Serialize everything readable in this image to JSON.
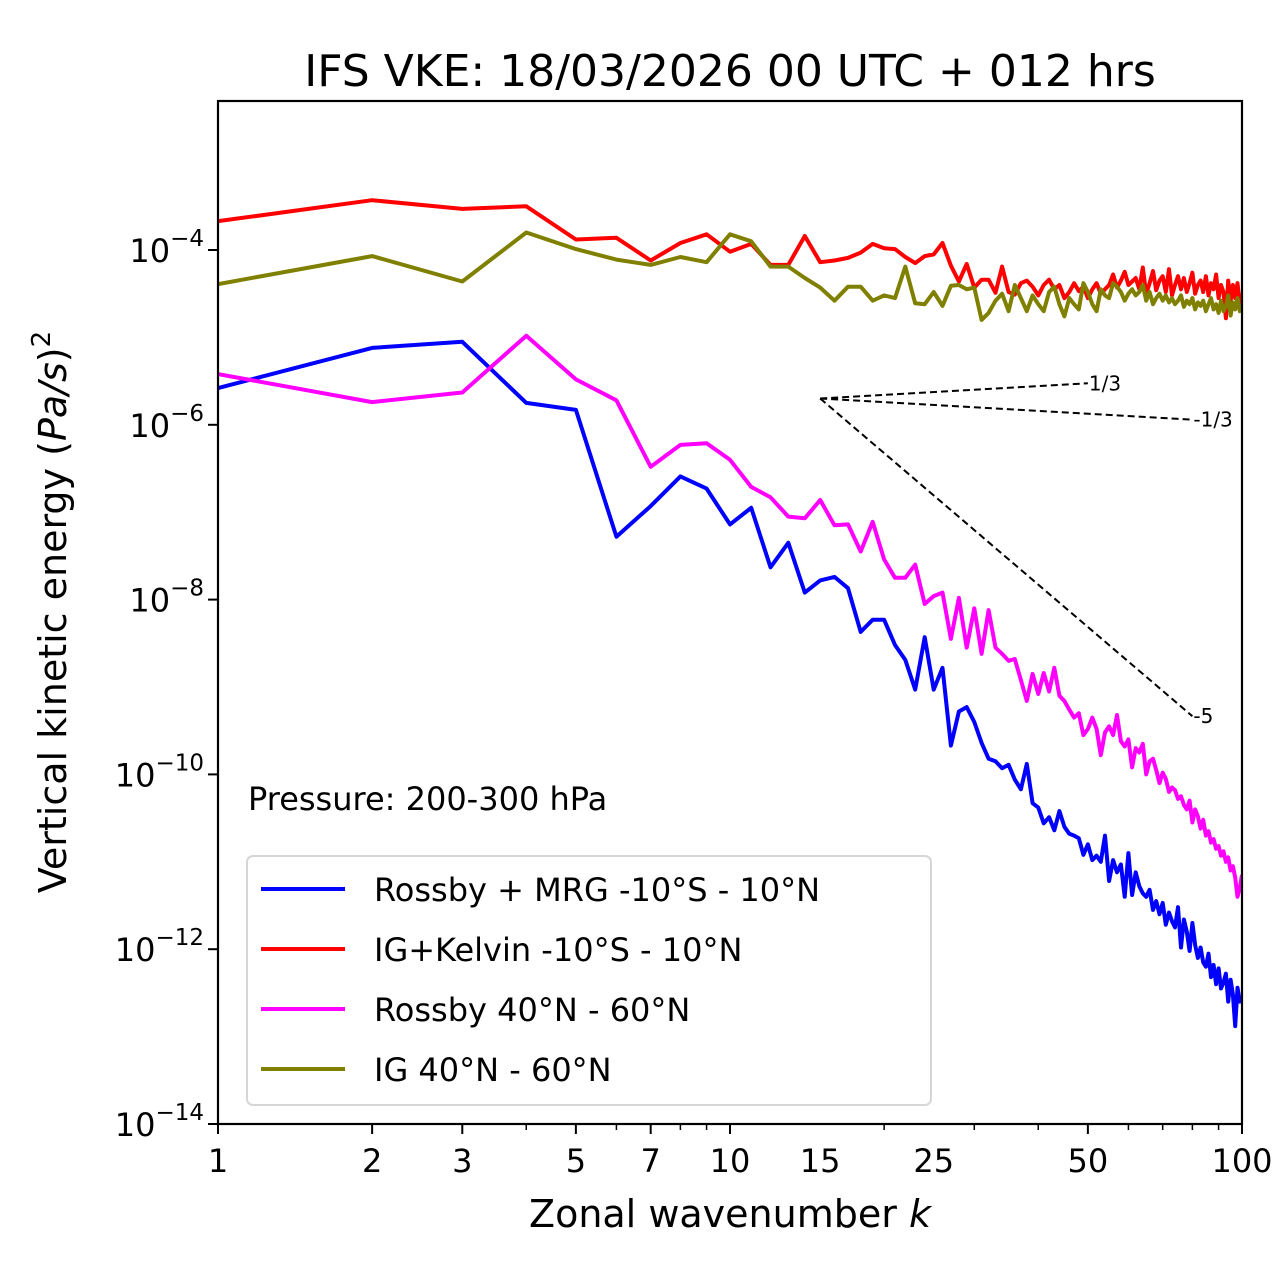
{
  "chart_data": {
    "type": "line",
    "title": "IFS VKE: 18/03/2026 00 UTC + 012 hrs",
    "xlabel": "Zonal wavenumber k",
    "xlabel_main": "Zonal wavenumber ",
    "xlabel_var": "k",
    "ylabel": "Vertical kinetic energy (Pa/s)^2",
    "ylabel_main": "Vertical kinetic energy (",
    "ylabel_unit": "Pa/s",
    "ylabel_close": ")",
    "ylabel_exp": "2",
    "xscale": "log",
    "yscale": "log",
    "xlim": [
      1,
      100
    ],
    "ylim": [
      1e-14,
      0.005
    ],
    "grid": false,
    "legend_position": "lower-left",
    "x_ticks": [
      1,
      2,
      3,
      5,
      7,
      10,
      15,
      25,
      50,
      100
    ],
    "x_tick_labels": [
      "1",
      "2",
      "3",
      "5",
      "7",
      "10",
      "15",
      "25",
      "50",
      "100"
    ],
    "y_ticks": [
      1e-14,
      1e-12,
      1e-10,
      1e-08,
      1e-06,
      0.0001
    ],
    "y_tick_labels": [
      {
        "base": "10",
        "exp": "−14"
      },
      {
        "base": "10",
        "exp": "−12"
      },
      {
        "base": "10",
        "exp": "−10"
      },
      {
        "base": "10",
        "exp": "−8"
      },
      {
        "base": "10",
        "exp": "−6"
      },
      {
        "base": "10",
        "exp": "−4"
      }
    ],
    "annotation": "Pressure: 200-300 hPa",
    "reference_slopes": [
      {
        "label": "1/3",
        "slope": 0.3333,
        "k_start": 15,
        "k_end": 50,
        "e_start": 2e-06
      },
      {
        "label": "-1/3",
        "slope": -0.3333,
        "k_start": 15,
        "k_end": 80,
        "e_start": 2e-06
      },
      {
        "label": "-5",
        "slope": -5,
        "k_start": 15,
        "k_end": 80,
        "e_start": 2e-06
      }
    ],
    "series": [
      {
        "name": "Rossby + MRG -10°S - 10°N",
        "color": "#0000ff",
        "log10_values": [
          -5.58,
          -5.12,
          -5.05,
          -5.75,
          -5.83,
          -7.28,
          -6.93,
          -6.59,
          -6.73,
          -7.14,
          -6.95,
          -7.63,
          -7.35,
          -7.92,
          -7.78,
          -7.74,
          -7.87,
          -8.37,
          -8.23,
          -8.23,
          -8.52,
          -8.69,
          -9.03,
          -8.43,
          -9.03,
          -8.78,
          -9.67,
          -9.28,
          -9.23,
          -9.4,
          -9.64,
          -9.82,
          -9.85,
          -9.93,
          -9.89,
          -10.06,
          -10.17,
          -9.88,
          -10.33,
          -10.38,
          -10.56,
          -10.49,
          -10.64,
          -10.42,
          -10.6,
          -10.68,
          -10.7,
          -10.73,
          -10.92,
          -10.8,
          -10.98,
          -10.93,
          -11.0,
          -10.7,
          -11.22,
          -10.98,
          -11.12,
          -11.03,
          -11.4,
          -10.9,
          -11.38,
          -11.12,
          -11.28,
          -11.36,
          -11.4,
          -11.32,
          -11.55,
          -11.45,
          -11.6,
          -11.47,
          -11.72,
          -11.58,
          -11.68,
          -11.75,
          -11.52,
          -11.98,
          -11.66,
          -11.8,
          -12.02,
          -11.7,
          -11.95,
          -12.1,
          -11.98,
          -12.15,
          -12.2,
          -12.05,
          -12.32,
          -12.18,
          -12.4,
          -12.22,
          -12.45,
          -12.38,
          -12.28,
          -12.6,
          -12.35,
          -12.52,
          -12.88,
          -12.44,
          -12.6,
          -12.58
        ],
        "k_start": 1
      },
      {
        "name": "IG+Kelvin -10°S - 10°N",
        "color": "#ff0000",
        "log10_values": [
          -3.67,
          -3.43,
          -3.53,
          -3.5,
          -3.88,
          -3.86,
          -4.12,
          -3.92,
          -3.82,
          -4.02,
          -3.93,
          -4.17,
          -4.17,
          -3.84,
          -4.14,
          -4.12,
          -4.09,
          -4.03,
          -3.93,
          -3.98,
          -3.99,
          -4.08,
          -4.15,
          -4.07,
          -4.05,
          -3.92,
          -4.18,
          -4.36,
          -4.16,
          -4.43,
          -4.34,
          -4.34,
          -4.49,
          -4.19,
          -4.48,
          -4.51,
          -4.38,
          -4.35,
          -4.42,
          -4.52,
          -4.4,
          -4.34,
          -4.45,
          -4.4,
          -4.55,
          -4.48,
          -4.38,
          -4.47,
          -4.42,
          -4.55,
          -4.45,
          -4.38,
          -4.5,
          -4.45,
          -4.4,
          -4.28,
          -4.43,
          -4.35,
          -4.25,
          -4.4,
          -4.36,
          -4.32,
          -4.45,
          -4.2,
          -4.5,
          -4.38,
          -4.24,
          -4.46,
          -4.35,
          -4.3,
          -4.48,
          -4.22,
          -4.52,
          -4.4,
          -4.3,
          -4.45,
          -4.32,
          -4.48,
          -4.38,
          -4.26,
          -4.5,
          -4.4,
          -4.35,
          -4.48,
          -4.3,
          -4.52,
          -4.38,
          -4.45,
          -4.28,
          -4.55,
          -4.4,
          -4.48,
          -4.78,
          -4.35,
          -4.58,
          -4.4,
          -4.55,
          -4.38,
          -4.62,
          -4.5
        ],
        "k_start": 1
      },
      {
        "name": "Rossby 40°N - 60°N",
        "color": "#ff00ff",
        "log10_values": [
          -5.42,
          -5.74,
          -5.63,
          -4.98,
          -5.48,
          -5.72,
          -6.48,
          -6.23,
          -6.21,
          -6.4,
          -6.71,
          -6.83,
          -7.05,
          -7.07,
          -6.86,
          -7.15,
          -7.14,
          -7.45,
          -7.11,
          -7.54,
          -7.75,
          -7.75,
          -7.6,
          -8.05,
          -7.96,
          -7.92,
          -8.45,
          -7.98,
          -8.55,
          -8.1,
          -8.62,
          -8.12,
          -8.55,
          -8.62,
          -8.7,
          -8.68,
          -8.92,
          -9.16,
          -8.85,
          -9.08,
          -8.84,
          -9.05,
          -8.78,
          -9.1,
          -9.16,
          -9.26,
          -9.35,
          -9.3,
          -9.55,
          -9.48,
          -9.35,
          -9.48,
          -9.78,
          -9.52,
          -9.45,
          -9.55,
          -9.32,
          -9.62,
          -9.68,
          -9.6,
          -9.92,
          -9.7,
          -9.75,
          -9.65,
          -10.0,
          -9.85,
          -9.82,
          -9.95,
          -10.1,
          -9.98,
          -10.05,
          -10.2,
          -10.15,
          -10.18,
          -10.28,
          -10.25,
          -10.35,
          -10.4,
          -10.3,
          -10.55,
          -10.4,
          -10.48,
          -10.62,
          -10.52,
          -10.7,
          -10.65,
          -10.78,
          -10.74,
          -10.85,
          -10.82,
          -10.93,
          -10.88,
          -11.0,
          -10.95,
          -11.1,
          -11.05,
          -11.18,
          -11.4,
          -11.3,
          -11.15
        ],
        "k_start": 1
      },
      {
        "name": "IG 40°N - 60°N",
        "color": "#808000",
        "log10_values": [
          -4.39,
          -4.07,
          -4.36,
          -3.8,
          -3.99,
          -4.11,
          -4.17,
          -4.08,
          -4.14,
          -3.82,
          -3.9,
          -4.19,
          -4.19,
          -4.32,
          -4.43,
          -4.58,
          -4.42,
          -4.42,
          -4.58,
          -4.52,
          -4.55,
          -4.19,
          -4.61,
          -4.62,
          -4.48,
          -4.64,
          -4.41,
          -4.4,
          -4.45,
          -4.43,
          -4.8,
          -4.72,
          -4.58,
          -4.5,
          -4.7,
          -4.4,
          -4.55,
          -4.7,
          -4.52,
          -4.62,
          -4.7,
          -4.48,
          -4.42,
          -4.62,
          -4.76,
          -4.55,
          -4.62,
          -4.68,
          -4.38,
          -4.48,
          -4.62,
          -4.7,
          -4.45,
          -4.52,
          -4.55,
          -4.38,
          -4.42,
          -4.48,
          -4.58,
          -4.5,
          -4.45,
          -4.52,
          -4.48,
          -4.4,
          -4.58,
          -4.48,
          -4.62,
          -4.55,
          -4.5,
          -4.58,
          -4.52,
          -4.6,
          -4.55,
          -4.62,
          -4.58,
          -4.52,
          -4.65,
          -4.58,
          -4.62,
          -4.55,
          -4.68,
          -4.6,
          -4.64,
          -4.58,
          -4.7,
          -4.62,
          -4.55,
          -4.68,
          -4.62,
          -4.72,
          -4.58,
          -4.7,
          -4.65,
          -4.52,
          -4.75,
          -4.6,
          -4.68,
          -4.55,
          -4.7,
          -4.62
        ],
        "k_start": 1
      }
    ]
  }
}
